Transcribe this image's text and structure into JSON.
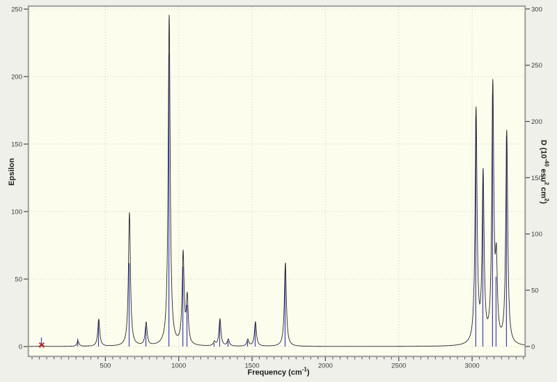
{
  "colors": {
    "outer_bg": "#f0f0ea",
    "plot_bg": "#fdfdee",
    "grid": "#c9c9bd",
    "frame": "#84848a",
    "frame_outer": "#c6c6bc",
    "curve": "#25252b",
    "stick": "#4343b2",
    "marker": "#c62828",
    "tick_text": "#3a3a3a"
  },
  "chart_data": {
    "type": "line",
    "title": "",
    "xlabel_parts": [
      {
        "t": "Frequency (cm"
      },
      {
        "t": "-1",
        "sup": true
      },
      {
        "t": ")"
      }
    ],
    "ylabel_left": "Epsilon",
    "ylabel_right_parts": [
      {
        "t": "D (10"
      },
      {
        "t": "-40",
        "sup": true
      },
      {
        "t": " esu"
      },
      {
        "t": "2",
        "sup": true
      },
      {
        "t": " cm"
      },
      {
        "t": "2",
        "sup": true
      },
      {
        "t": ")"
      }
    ],
    "x_range": [
      -23.7,
      3360.3
    ],
    "left_range": [
      -7.2,
      252.1
    ],
    "right_range": [
      -8.7,
      302.4
    ],
    "x_major_ticks": [
      500,
      1000,
      1500,
      2000,
      2500,
      3000
    ],
    "x_minor_step": 50,
    "x_minor_min": 0,
    "x_minor_max": 3350,
    "left_ticks": [
      0,
      50,
      100,
      150,
      200,
      250
    ],
    "right_ticks": [
      0,
      50,
      100,
      150,
      200,
      250,
      300
    ],
    "grid": "dotted, horizontal at left-axis ticks, vertical at x major ticks",
    "legend_position": "none",
    "lorentzian_hwhm_cm1": 8,
    "series": [
      {
        "name": "Epsilon convolved curve (left axis)",
        "style": "black line"
      },
      {
        "name": "D sticks (right axis)",
        "style": "blue vertical lines"
      }
    ],
    "peaks": [
      {
        "freq": 66,
        "epsilon": 2,
        "d": 8
      },
      {
        "freq": 313,
        "epsilon": 4,
        "d": 7
      },
      {
        "freq": 455,
        "epsilon": 20,
        "d": 23
      },
      {
        "freq": 664,
        "epsilon": 99,
        "d": 74
      },
      {
        "freq": 778,
        "epsilon": 17,
        "d": 18
      },
      {
        "freq": 935,
        "epsilon": 245,
        "d": 260
      },
      {
        "freq": 1030,
        "epsilon": 67,
        "d": 71
      },
      {
        "freq": 1058,
        "epsilon": 34,
        "d": 37
      },
      {
        "freq": 1243,
        "epsilon": 3,
        "d": 3
      },
      {
        "freq": 1281,
        "epsilon": 20,
        "d": 22
      },
      {
        "freq": 1338,
        "epsilon": 5,
        "d": 5
      },
      {
        "freq": 1471,
        "epsilon": 5,
        "d": 5
      },
      {
        "freq": 1523,
        "epsilon": 18,
        "d": 20
      },
      {
        "freq": 1727,
        "epsilon": 62,
        "d": 68
      },
      {
        "freq": 3027,
        "epsilon": 173,
        "d": 204
      },
      {
        "freq": 3075,
        "epsilon": 124,
        "d": 146
      },
      {
        "freq": 3141,
        "epsilon": 189,
        "d": 224
      },
      {
        "freq": 3165,
        "epsilon": 54,
        "d": 62
      },
      {
        "freq": 3236,
        "epsilon": 158,
        "d": 187
      }
    ],
    "marker": {
      "freq": 66,
      "epsilon": 0,
      "shape": "red X at baseline"
    }
  }
}
